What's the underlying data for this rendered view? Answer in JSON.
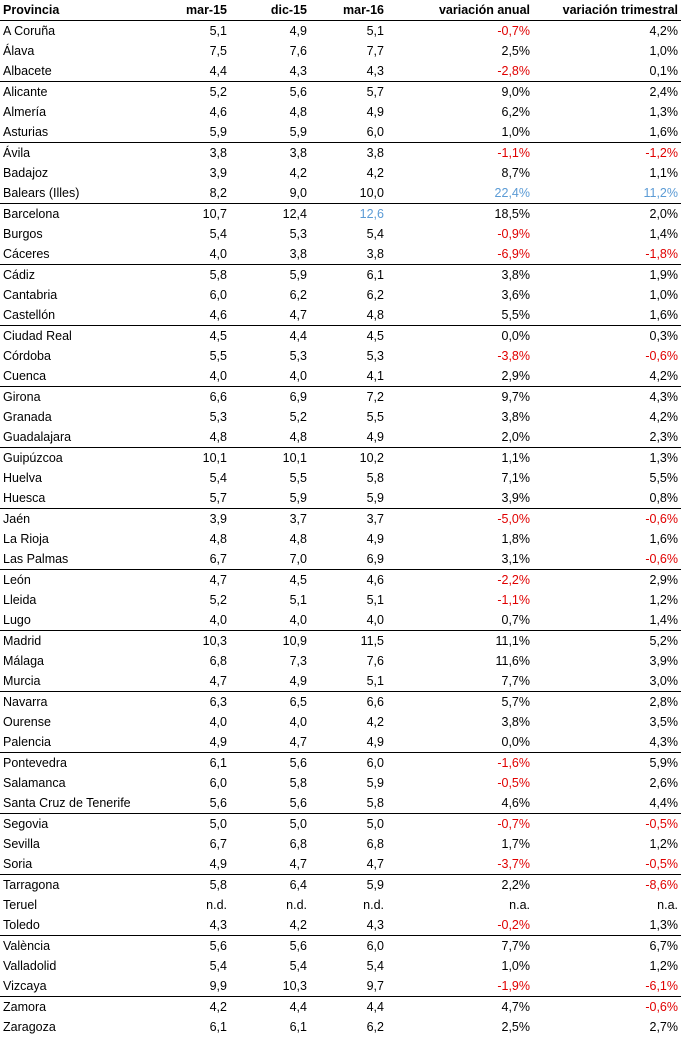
{
  "header": {
    "provincia": "Provincia",
    "mar15": "mar-15",
    "dic15": "dic-15",
    "mar16": "mar-16",
    "anual": "variación anual",
    "trimestral": "variación trimestral"
  },
  "colors": {
    "negative": "#e00000",
    "highlight": "#5b9bd5"
  },
  "rows": [
    {
      "p": "A Coruña",
      "m15": "5,1",
      "d15": "4,9",
      "m16": "5,1",
      "va": "-0,7%",
      "vt": "4,2%",
      "g": true
    },
    {
      "p": "Álava",
      "m15": "7,5",
      "d15": "7,6",
      "m16": "7,7",
      "va": "2,5%",
      "vt": "1,0%"
    },
    {
      "p": "Albacete",
      "m15": "4,4",
      "d15": "4,3",
      "m16": "4,3",
      "va": "-2,8%",
      "vt": "0,1%"
    },
    {
      "p": "Alicante",
      "m15": "5,2",
      "d15": "5,6",
      "m16": "5,7",
      "va": "9,0%",
      "vt": "2,4%",
      "g": true
    },
    {
      "p": "Almería",
      "m15": "4,6",
      "d15": "4,8",
      "m16": "4,9",
      "va": "6,2%",
      "vt": "1,3%"
    },
    {
      "p": "Asturias",
      "m15": "5,9",
      "d15": "5,9",
      "m16": "6,0",
      "va": "1,0%",
      "vt": "1,6%"
    },
    {
      "p": "Ávila",
      "m15": "3,8",
      "d15": "3,8",
      "m16": "3,8",
      "va": "-1,1%",
      "vt": "-1,2%",
      "g": true
    },
    {
      "p": "Badajoz",
      "m15": "3,9",
      "d15": "4,2",
      "m16": "4,2",
      "va": "8,7%",
      "vt": "1,1%"
    },
    {
      "p": "Balears (Illes)",
      "m15": "8,2",
      "d15": "9,0",
      "m16": "10,0",
      "va": "22,4%",
      "vt": "11,2%",
      "hl_va": true,
      "hl_vt": true
    },
    {
      "p": "Barcelona",
      "m15": "10,7",
      "d15": "12,4",
      "m16": "12,6",
      "va": "18,5%",
      "vt": "2,0%",
      "g": true,
      "hl_m16": true
    },
    {
      "p": "Burgos",
      "m15": "5,4",
      "d15": "5,3",
      "m16": "5,4",
      "va": "-0,9%",
      "vt": "1,4%"
    },
    {
      "p": "Cáceres",
      "m15": "4,0",
      "d15": "3,8",
      "m16": "3,8",
      "va": "-6,9%",
      "vt": "-1,8%"
    },
    {
      "p": "Cádiz",
      "m15": "5,8",
      "d15": "5,9",
      "m16": "6,1",
      "va": "3,8%",
      "vt": "1,9%",
      "g": true
    },
    {
      "p": "Cantabria",
      "m15": "6,0",
      "d15": "6,2",
      "m16": "6,2",
      "va": "3,6%",
      "vt": "1,0%"
    },
    {
      "p": "Castellón",
      "m15": "4,6",
      "d15": "4,7",
      "m16": "4,8",
      "va": "5,5%",
      "vt": "1,6%"
    },
    {
      "p": "Ciudad Real",
      "m15": "4,5",
      "d15": "4,4",
      "m16": "4,5",
      "va": "0,0%",
      "vt": "0,3%",
      "g": true
    },
    {
      "p": "Córdoba",
      "m15": "5,5",
      "d15": "5,3",
      "m16": "5,3",
      "va": "-3,8%",
      "vt": "-0,6%"
    },
    {
      "p": "Cuenca",
      "m15": "4,0",
      "d15": "4,0",
      "m16": "4,1",
      "va": "2,9%",
      "vt": "4,2%"
    },
    {
      "p": "Girona",
      "m15": "6,6",
      "d15": "6,9",
      "m16": "7,2",
      "va": "9,7%",
      "vt": "4,3%",
      "g": true
    },
    {
      "p": "Granada",
      "m15": "5,3",
      "d15": "5,2",
      "m16": "5,5",
      "va": "3,8%",
      "vt": "4,2%"
    },
    {
      "p": "Guadalajara",
      "m15": "4,8",
      "d15": "4,8",
      "m16": "4,9",
      "va": "2,0%",
      "vt": "2,3%"
    },
    {
      "p": "Guipúzcoa",
      "m15": "10,1",
      "d15": "10,1",
      "m16": "10,2",
      "va": "1,1%",
      "vt": "1,3%",
      "g": true
    },
    {
      "p": "Huelva",
      "m15": "5,4",
      "d15": "5,5",
      "m16": "5,8",
      "va": "7,1%",
      "vt": "5,5%"
    },
    {
      "p": "Huesca",
      "m15": "5,7",
      "d15": "5,9",
      "m16": "5,9",
      "va": "3,9%",
      "vt": "0,8%"
    },
    {
      "p": "Jaén",
      "m15": "3,9",
      "d15": "3,7",
      "m16": "3,7",
      "va": "-5,0%",
      "vt": "-0,6%",
      "g": true
    },
    {
      "p": "La Rioja",
      "m15": "4,8",
      "d15": "4,8",
      "m16": "4,9",
      "va": "1,8%",
      "vt": "1,6%"
    },
    {
      "p": "Las Palmas",
      "m15": "6,7",
      "d15": "7,0",
      "m16": "6,9",
      "va": "3,1%",
      "vt": "-0,6%"
    },
    {
      "p": "León",
      "m15": "4,7",
      "d15": "4,5",
      "m16": "4,6",
      "va": "-2,2%",
      "vt": "2,9%",
      "g": true
    },
    {
      "p": "Lleida",
      "m15": "5,2",
      "d15": "5,1",
      "m16": "5,1",
      "va": "-1,1%",
      "vt": "1,2%"
    },
    {
      "p": "Lugo",
      "m15": "4,0",
      "d15": "4,0",
      "m16": "4,0",
      "va": "0,7%",
      "vt": "1,4%"
    },
    {
      "p": "Madrid",
      "m15": "10,3",
      "d15": "10,9",
      "m16": "11,5",
      "va": "11,1%",
      "vt": "5,2%",
      "g": true
    },
    {
      "p": "Málaga",
      "m15": "6,8",
      "d15": "7,3",
      "m16": "7,6",
      "va": "11,6%",
      "vt": "3,9%"
    },
    {
      "p": "Murcia",
      "m15": "4,7",
      "d15": "4,9",
      "m16": "5,1",
      "va": "7,7%",
      "vt": "3,0%"
    },
    {
      "p": "Navarra",
      "m15": "6,3",
      "d15": "6,5",
      "m16": "6,6",
      "va": "5,7%",
      "vt": "2,8%",
      "g": true
    },
    {
      "p": "Ourense",
      "m15": "4,0",
      "d15": "4,0",
      "m16": "4,2",
      "va": "3,8%",
      "vt": "3,5%"
    },
    {
      "p": "Palencia",
      "m15": "4,9",
      "d15": "4,7",
      "m16": "4,9",
      "va": "0,0%",
      "vt": "4,3%"
    },
    {
      "p": "Pontevedra",
      "m15": "6,1",
      "d15": "5,6",
      "m16": "6,0",
      "va": "-1,6%",
      "vt": "5,9%",
      "g": true
    },
    {
      "p": "Salamanca",
      "m15": "6,0",
      "d15": "5,8",
      "m16": "5,9",
      "va": "-0,5%",
      "vt": "2,6%"
    },
    {
      "p": "Santa Cruz de Tenerife",
      "m15": "5,6",
      "d15": "5,6",
      "m16": "5,8",
      "va": "4,6%",
      "vt": "4,4%"
    },
    {
      "p": "Segovia",
      "m15": "5,0",
      "d15": "5,0",
      "m16": "5,0",
      "va": "-0,7%",
      "vt": "-0,5%",
      "g": true
    },
    {
      "p": "Sevilla",
      "m15": "6,7",
      "d15": "6,8",
      "m16": "6,8",
      "va": "1,7%",
      "vt": "1,2%"
    },
    {
      "p": "Soria",
      "m15": "4,9",
      "d15": "4,7",
      "m16": "4,7",
      "va": "-3,7%",
      "vt": "-0,5%"
    },
    {
      "p": "Tarragona",
      "m15": "5,8",
      "d15": "6,4",
      "m16": "5,9",
      "va": "2,2%",
      "vt": "-8,6%",
      "g": true
    },
    {
      "p": "Teruel",
      "m15": "n.d.",
      "d15": "n.d.",
      "m16": "n.d.",
      "va": "n.a.",
      "vt": "n.a."
    },
    {
      "p": "Toledo",
      "m15": "4,3",
      "d15": "4,2",
      "m16": "4,3",
      "va": "-0,2%",
      "vt": "1,3%"
    },
    {
      "p": "València",
      "m15": "5,6",
      "d15": "5,6",
      "m16": "6,0",
      "va": "7,7%",
      "vt": "6,7%",
      "g": true
    },
    {
      "p": "Valladolid",
      "m15": "5,4",
      "d15": "5,4",
      "m16": "5,4",
      "va": "1,0%",
      "vt": "1,2%"
    },
    {
      "p": "Vizcaya",
      "m15": "9,9",
      "d15": "10,3",
      "m16": "9,7",
      "va": "-1,9%",
      "vt": "-6,1%"
    },
    {
      "p": "Zamora",
      "m15": "4,2",
      "d15": "4,4",
      "m16": "4,4",
      "va": "4,7%",
      "vt": "-0,6%",
      "g": true
    },
    {
      "p": "Zaragoza",
      "m15": "6,1",
      "d15": "6,1",
      "m16": "6,2",
      "va": "2,5%",
      "vt": "2,7%"
    }
  ]
}
